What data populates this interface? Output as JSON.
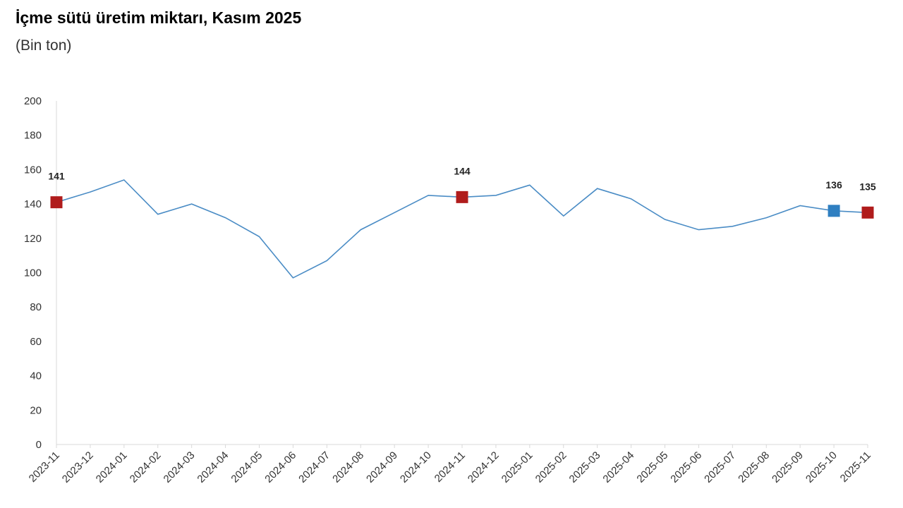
{
  "chart_data": {
    "type": "line",
    "title": "İçme sütü üretim miktarı, Kasım 2025",
    "subtitle": "(Bin ton)",
    "xlabel": "",
    "ylabel": "",
    "ylim": [
      0,
      200
    ],
    "yticks": [
      0,
      20,
      40,
      60,
      80,
      100,
      120,
      140,
      160,
      180,
      200
    ],
    "grid": false,
    "categories": [
      "2023-11",
      "2023-12",
      "2024-01",
      "2024-02",
      "2024-03",
      "2024-04",
      "2024-05",
      "2024-06",
      "2024-07",
      "2024-08",
      "2024-09",
      "2024-10",
      "2024-11",
      "2024-12",
      "2025-01",
      "2025-02",
      "2025-03",
      "2025-04",
      "2025-05",
      "2025-06",
      "2025-07",
      "2025-08",
      "2025-09",
      "2025-10",
      "2025-11"
    ],
    "series": [
      {
        "values": [
          141,
          147,
          154,
          134,
          140,
          132,
          121,
          97,
          107,
          125,
          135,
          145,
          144,
          145,
          151,
          133,
          149,
          143,
          131,
          125,
          127,
          132,
          139,
          136,
          135
        ],
        "color": "#4a8cc5"
      }
    ],
    "markers": [
      {
        "index": 0,
        "label": "141",
        "color": "#b01c1c"
      },
      {
        "index": 12,
        "label": "144",
        "color": "#b01c1c"
      },
      {
        "index": 23,
        "label": "136",
        "color": "#2f7fc1"
      },
      {
        "index": 24,
        "label": "135",
        "color": "#b01c1c"
      }
    ],
    "axis_color": "#d9d9d9"
  }
}
